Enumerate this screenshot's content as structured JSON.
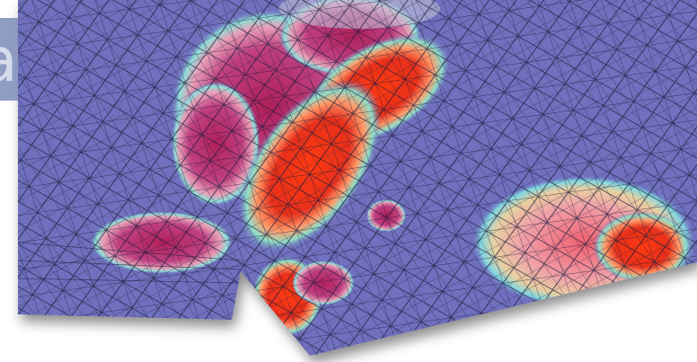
{
  "label": {
    "text": "a"
  }
}
